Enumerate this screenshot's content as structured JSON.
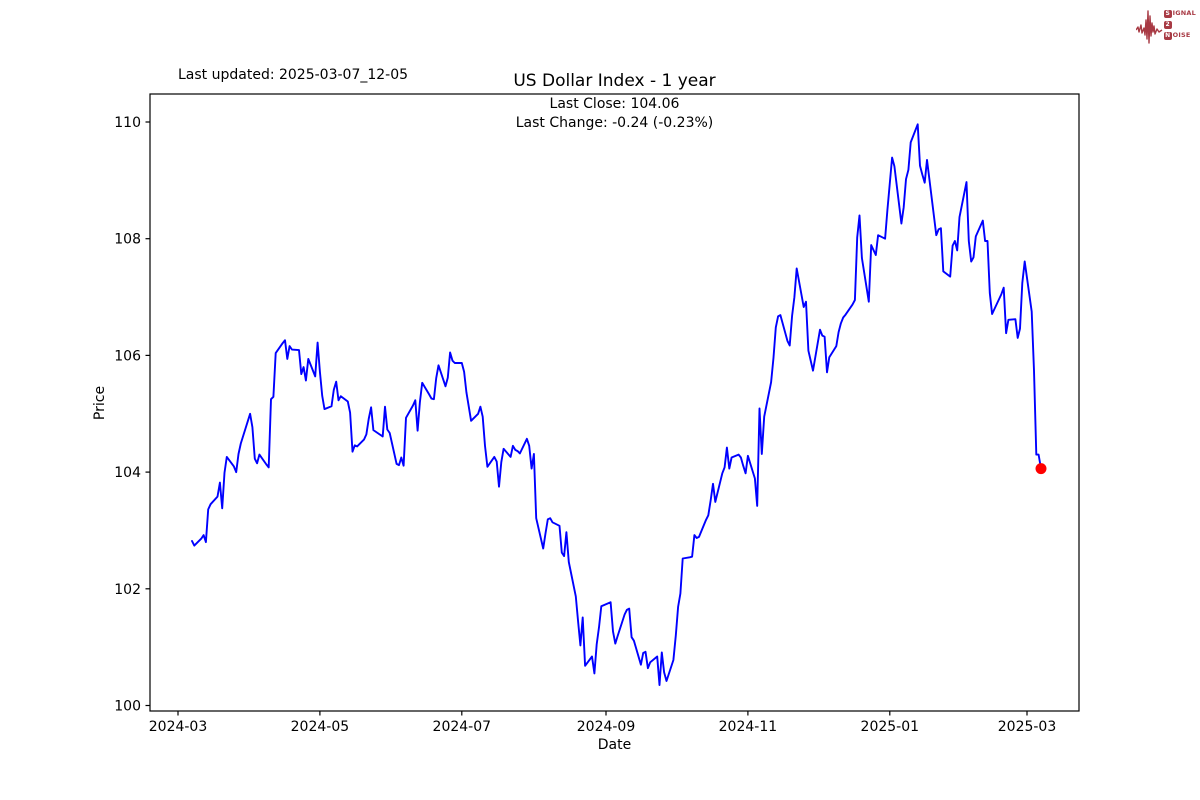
{
  "header": {
    "last_updated": "Last updated: 2025-03-07_12-05",
    "title": "US Dollar Index - 1 year",
    "annotation_line1": "Last Close: 104.06",
    "annotation_line2": "Last Change: -0.24 (-0.23%)"
  },
  "axes": {
    "xlabel": "Date",
    "ylabel": "Price"
  },
  "logo": {
    "color": "#a83a44",
    "line1_initial": "S",
    "line1_rest": "IGNAL",
    "line2_initial": "2",
    "line2_rest": "",
    "line3_initial": "N",
    "line3_rest": "OISE"
  },
  "chart_data": {
    "type": "line",
    "title": "US Dollar Index - 1 year",
    "xlabel": "Date",
    "ylabel": "Price",
    "ylim": [
      99.9,
      110.5
    ],
    "grid": false,
    "line_color": "#0000ff",
    "marker_color": "#ff0000",
    "last_close": 104.06,
    "last_change": "-0.24 (-0.23%)",
    "y_ticks": [
      100,
      102,
      104,
      106,
      108,
      110
    ],
    "x_ticks": [
      {
        "label": "2024-03",
        "date": "2024-03-01"
      },
      {
        "label": "2024-05",
        "date": "2024-05-01"
      },
      {
        "label": "2024-07",
        "date": "2024-07-01"
      },
      {
        "label": "2024-09",
        "date": "2024-09-01"
      },
      {
        "label": "2024-11",
        "date": "2024-11-01"
      },
      {
        "label": "2025-01",
        "date": "2025-01-01"
      },
      {
        "label": "2025-03",
        "date": "2025-03-01"
      }
    ],
    "series": [
      {
        "name": "US Dollar Index",
        "dates": [
          "2024-03-07",
          "2024-03-08",
          "2024-03-11",
          "2024-03-12",
          "2024-03-13",
          "2024-03-14",
          "2024-03-15",
          "2024-03-18",
          "2024-03-19",
          "2024-03-20",
          "2024-03-21",
          "2024-03-22",
          "2024-03-25",
          "2024-03-26",
          "2024-03-27",
          "2024-03-28",
          "2024-04-01",
          "2024-04-02",
          "2024-04-03",
          "2024-04-04",
          "2024-04-05",
          "2024-04-08",
          "2024-04-09",
          "2024-04-10",
          "2024-04-11",
          "2024-04-12",
          "2024-04-15",
          "2024-04-16",
          "2024-04-17",
          "2024-04-18",
          "2024-04-19",
          "2024-04-22",
          "2024-04-23",
          "2024-04-24",
          "2024-04-25",
          "2024-04-26",
          "2024-04-29",
          "2024-04-30",
          "2024-05-01",
          "2024-05-02",
          "2024-05-03",
          "2024-05-06",
          "2024-05-07",
          "2024-05-08",
          "2024-05-09",
          "2024-05-10",
          "2024-05-13",
          "2024-05-14",
          "2024-05-15",
          "2024-05-16",
          "2024-05-17",
          "2024-05-20",
          "2024-05-21",
          "2024-05-22",
          "2024-05-23",
          "2024-05-24",
          "2024-05-28",
          "2024-05-29",
          "2024-05-30",
          "2024-05-31",
          "2024-06-03",
          "2024-06-04",
          "2024-06-05",
          "2024-06-06",
          "2024-06-07",
          "2024-06-10",
          "2024-06-11",
          "2024-06-12",
          "2024-06-13",
          "2024-06-14",
          "2024-06-17",
          "2024-06-18",
          "2024-06-19",
          "2024-06-20",
          "2024-06-21",
          "2024-06-24",
          "2024-06-25",
          "2024-06-26",
          "2024-06-27",
          "2024-06-28",
          "2024-07-01",
          "2024-07-02",
          "2024-07-03",
          "2024-07-05",
          "2024-07-08",
          "2024-07-09",
          "2024-07-10",
          "2024-07-11",
          "2024-07-12",
          "2024-07-15",
          "2024-07-16",
          "2024-07-17",
          "2024-07-18",
          "2024-07-19",
          "2024-07-22",
          "2024-07-23",
          "2024-07-24",
          "2024-07-25",
          "2024-07-26",
          "2024-07-29",
          "2024-07-30",
          "2024-07-31",
          "2024-08-01",
          "2024-08-02",
          "2024-08-05",
          "2024-08-06",
          "2024-08-07",
          "2024-08-08",
          "2024-08-09",
          "2024-08-12",
          "2024-08-13",
          "2024-08-14",
          "2024-08-15",
          "2024-08-16",
          "2024-08-19",
          "2024-08-20",
          "2024-08-21",
          "2024-08-22",
          "2024-08-23",
          "2024-08-26",
          "2024-08-27",
          "2024-08-28",
          "2024-08-29",
          "2024-08-30",
          "2024-09-03",
          "2024-09-04",
          "2024-09-05",
          "2024-09-06",
          "2024-09-09",
          "2024-09-10",
          "2024-09-11",
          "2024-09-12",
          "2024-09-13",
          "2024-09-16",
          "2024-09-17",
          "2024-09-18",
          "2024-09-19",
          "2024-09-20",
          "2024-09-23",
          "2024-09-24",
          "2024-09-25",
          "2024-09-26",
          "2024-09-27",
          "2024-09-30",
          "2024-10-01",
          "2024-10-02",
          "2024-10-03",
          "2024-10-04",
          "2024-10-07",
          "2024-10-08",
          "2024-10-09",
          "2024-10-10",
          "2024-10-11",
          "2024-10-14",
          "2024-10-15",
          "2024-10-16",
          "2024-10-17",
          "2024-10-18",
          "2024-10-21",
          "2024-10-22",
          "2024-10-23",
          "2024-10-24",
          "2024-10-25",
          "2024-10-28",
          "2024-10-29",
          "2024-10-30",
          "2024-10-31",
          "2024-11-01",
          "2024-11-04",
          "2024-11-05",
          "2024-11-06",
          "2024-11-07",
          "2024-11-08",
          "2024-11-11",
          "2024-11-12",
          "2024-11-13",
          "2024-11-14",
          "2024-11-15",
          "2024-11-18",
          "2024-11-19",
          "2024-11-20",
          "2024-11-21",
          "2024-11-22",
          "2024-11-25",
          "2024-11-26",
          "2024-11-27",
          "2024-11-29",
          "2024-12-02",
          "2024-12-03",
          "2024-12-04",
          "2024-12-05",
          "2024-12-06",
          "2024-12-09",
          "2024-12-10",
          "2024-12-11",
          "2024-12-12",
          "2024-12-13",
          "2024-12-16",
          "2024-12-17",
          "2024-12-18",
          "2024-12-19",
          "2024-12-20",
          "2024-12-23",
          "2024-12-24",
          "2024-12-26",
          "2024-12-27",
          "2024-12-30",
          "2024-12-31",
          "2025-01-02",
          "2025-01-03",
          "2025-01-06",
          "2025-01-07",
          "2025-01-08",
          "2025-01-09",
          "2025-01-10",
          "2025-01-13",
          "2025-01-14",
          "2025-01-15",
          "2025-01-16",
          "2025-01-17",
          "2025-01-21",
          "2025-01-22",
          "2025-01-23",
          "2025-01-24",
          "2025-01-27",
          "2025-01-28",
          "2025-01-29",
          "2025-01-30",
          "2025-01-31",
          "2025-02-03",
          "2025-02-04",
          "2025-02-05",
          "2025-02-06",
          "2025-02-07",
          "2025-02-10",
          "2025-02-11",
          "2025-02-12",
          "2025-02-13",
          "2025-02-14",
          "2025-02-18",
          "2025-02-19",
          "2025-02-20",
          "2025-02-21",
          "2025-02-24",
          "2025-02-25",
          "2025-02-26",
          "2025-02-27",
          "2025-02-28",
          "2025-03-03",
          "2025-03-04",
          "2025-03-05",
          "2025-03-06",
          "2025-03-07"
        ],
        "values": [
          102.82,
          102.74,
          102.86,
          102.92,
          102.8,
          103.36,
          103.45,
          103.58,
          103.82,
          103.38,
          103.99,
          104.26,
          104.1,
          104.0,
          104.31,
          104.49,
          105.0,
          104.77,
          104.23,
          104.15,
          104.3,
          104.13,
          104.08,
          105.25,
          105.29,
          106.04,
          106.21,
          106.26,
          105.94,
          106.16,
          106.1,
          106.09,
          105.68,
          105.8,
          105.57,
          105.94,
          105.64,
          106.22,
          105.72,
          105.31,
          105.08,
          105.13,
          105.41,
          105.55,
          105.23,
          105.3,
          105.21,
          105.02,
          104.35,
          104.46,
          104.44,
          104.56,
          104.65,
          104.91,
          105.11,
          104.72,
          104.61,
          105.12,
          104.73,
          104.67,
          104.14,
          104.12,
          104.25,
          104.11,
          104.93,
          105.14,
          105.23,
          104.71,
          105.2,
          105.53,
          105.33,
          105.26,
          105.25,
          105.61,
          105.83,
          105.47,
          105.62,
          106.05,
          105.91,
          105.87,
          105.87,
          105.72,
          105.37,
          104.88,
          105.0,
          105.12,
          104.95,
          104.45,
          104.09,
          104.26,
          104.18,
          103.75,
          104.17,
          104.4,
          104.26,
          104.45,
          104.38,
          104.36,
          104.32,
          104.57,
          104.45,
          104.06,
          104.31,
          103.21,
          102.69,
          102.95,
          103.19,
          103.21,
          103.14,
          103.08,
          102.62,
          102.56,
          102.97,
          102.46,
          101.87,
          101.44,
          101.03,
          101.51,
          100.68,
          100.84,
          100.55,
          101.05,
          101.34,
          101.7,
          101.77,
          101.27,
          101.06,
          101.19,
          101.56,
          101.64,
          101.66,
          101.17,
          101.11,
          100.7,
          100.9,
          100.92,
          100.64,
          100.74,
          100.84,
          100.35,
          100.91,
          100.57,
          100.42,
          100.78,
          101.2,
          101.69,
          101.92,
          102.52,
          102.54,
          102.55,
          102.92,
          102.87,
          102.89,
          103.18,
          103.26,
          103.52,
          103.8,
          103.49,
          103.98,
          104.08,
          104.42,
          104.06,
          104.25,
          104.3,
          104.25,
          104.11,
          103.98,
          104.28,
          103.89,
          103.42,
          105.09,
          104.31,
          104.95,
          105.54,
          105.96,
          106.48,
          106.67,
          106.69,
          106.25,
          106.17,
          106.68,
          107.0,
          107.49,
          106.83,
          106.92,
          106.08,
          105.74,
          106.44,
          106.34,
          106.32,
          105.71,
          105.97,
          106.16,
          106.4,
          106.55,
          106.65,
          106.7,
          106.87,
          106.95,
          108.02,
          108.4,
          107.67,
          106.92,
          107.89,
          107.72,
          108.06,
          108.0,
          108.49,
          109.39,
          109.24,
          108.26,
          108.54,
          109.02,
          109.18,
          109.65,
          109.96,
          109.25,
          109.1,
          108.96,
          109.35,
          108.06,
          108.16,
          108.18,
          107.44,
          107.35,
          107.88,
          107.96,
          107.8,
          108.37,
          108.97,
          107.96,
          107.61,
          107.68,
          108.04,
          108.31,
          107.96,
          107.96,
          107.07,
          106.71,
          107.05,
          107.16,
          106.38,
          106.61,
          106.62,
          106.3,
          106.46,
          107.24,
          107.61,
          106.75,
          105.74,
          104.3,
          104.3,
          104.06
        ]
      }
    ]
  }
}
